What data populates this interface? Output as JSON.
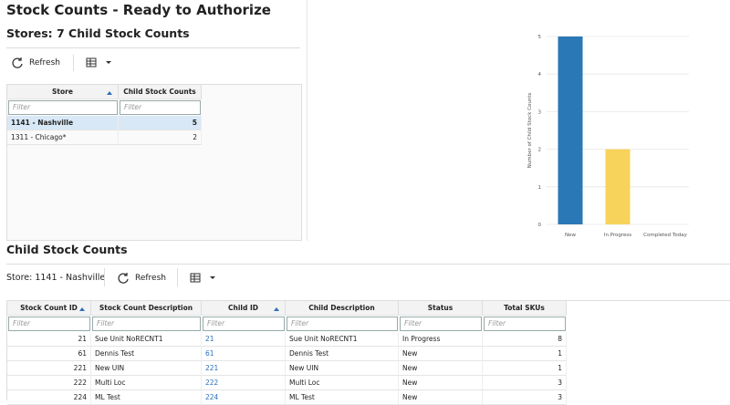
{
  "header": {
    "title": "Stock Counts - Ready to Authorize"
  },
  "stores_panel": {
    "title": "Stores: 7 Child Stock Counts",
    "refresh": "Refresh",
    "columns": [
      "Store",
      "Child Stock Counts"
    ],
    "filter_placeholder": "Filter",
    "rows": [
      [
        "1141 - Nashville",
        5
      ],
      [
        "1311 - Chicago*",
        2
      ]
    ]
  },
  "chart_data": {
    "type": "bar",
    "y_label": "Number of Child Stock Counts",
    "categories": [
      "New",
      "In Progress",
      "Completed Today"
    ],
    "values": [
      5,
      2,
      0
    ],
    "colors": [
      "#2a78b5",
      "#f7d35c",
      "#9bc46a"
    ],
    "ylim": [
      0,
      5
    ],
    "yticks": [
      0,
      1,
      2,
      3,
      4,
      5
    ],
    "grid": true
  },
  "child_panel": {
    "title": "Child Stock Counts",
    "store_label": "Store: 1141 - Nashville",
    "refresh": "Refresh",
    "columns": [
      "Stock Count ID",
      "Stock Count Description",
      "Child ID",
      "Child Description",
      "Status",
      "Total SKUs"
    ],
    "filter_placeholder": "Filter",
    "rows": [
      [
        21,
        "Sue Unit NoRECNT1",
        21,
        "Sue Unit NoRECNT1",
        "In Progress",
        8
      ],
      [
        61,
        "Dennis Test",
        61,
        "Dennis Test",
        "New",
        1
      ],
      [
        221,
        "New UIN",
        221,
        "New UIN",
        "New",
        1
      ],
      [
        222,
        "Multi Loc",
        222,
        "Multi Loc",
        "New",
        3
      ],
      [
        224,
        "ML Test",
        224,
        "ML Test",
        "New",
        3
      ]
    ]
  }
}
